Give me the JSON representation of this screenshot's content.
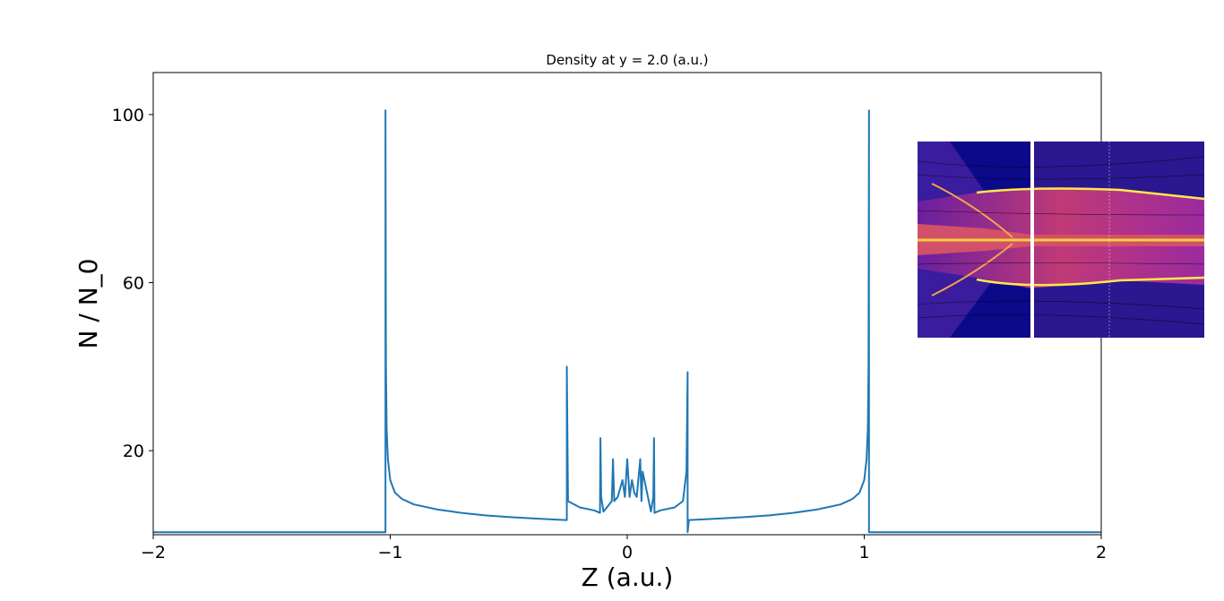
{
  "chart_data": {
    "type": "line",
    "title": "Density at y = 2.0 (a.u.)",
    "xlabel": "Z (a.u.)",
    "ylabel": "N / N_0",
    "xlim": [
      -2,
      2
    ],
    "ylim": [
      0,
      110
    ],
    "xticks": [
      -2,
      -1,
      0,
      1,
      2
    ],
    "xtick_labels": [
      "−2",
      "−1",
      "0",
      "1",
      "2"
    ],
    "yticks": [
      20,
      60,
      100
    ],
    "ytick_labels": [
      "20",
      "60",
      "100"
    ],
    "grid": false,
    "legend": "none",
    "series": [
      {
        "color": "#1f77b4",
        "x": [
          -2.0,
          -1.5,
          -1.02,
          -1.02,
          -1.018,
          -1.015,
          -1.01,
          -1.0,
          -0.98,
          -0.95,
          -0.9,
          -0.8,
          -0.7,
          -0.6,
          -0.5,
          -0.4,
          -0.3,
          -0.26,
          -0.255,
          -0.255,
          -0.25,
          -0.2,
          -0.14,
          -0.115,
          -0.113,
          -0.11,
          -0.1,
          -0.065,
          -0.06,
          -0.055,
          -0.04,
          -0.03,
          -0.02,
          -0.01,
          0.0,
          0.01,
          0.02,
          0.03,
          0.04,
          0.055,
          0.06,
          0.065,
          0.1,
          0.11,
          0.113,
          0.115,
          0.14,
          0.2,
          0.235,
          0.25,
          0.255,
          0.255,
          0.26,
          0.3,
          0.4,
          0.5,
          0.6,
          0.7,
          0.8,
          0.9,
          0.95,
          0.98,
          1.0,
          1.01,
          1.015,
          1.018,
          1.02,
          1.02,
          1.5,
          2.0
        ],
        "y": [
          0.6,
          0.6,
          0.6,
          101,
          40,
          25,
          18,
          13,
          10,
          8.5,
          7.2,
          6.0,
          5.2,
          4.6,
          4.2,
          3.9,
          3.6,
          3.5,
          3.5,
          40,
          8,
          6.5,
          5.8,
          5.2,
          23,
          9,
          5.5,
          8,
          18,
          8,
          9,
          11,
          13,
          9,
          18,
          9,
          13,
          10,
          9,
          18,
          8,
          15,
          5.5,
          9,
          23,
          5.2,
          5.8,
          6.5,
          8,
          15,
          38.7,
          0.6,
          3.5,
          3.6,
          3.9,
          4.2,
          4.6,
          5.2,
          6.0,
          7.2,
          8.5,
          10,
          13,
          18,
          25,
          40,
          101,
          0.6,
          0.6,
          0.6
        ]
      }
    ]
  },
  "inset": {
    "description_icon": "density-map-inset-icon"
  }
}
